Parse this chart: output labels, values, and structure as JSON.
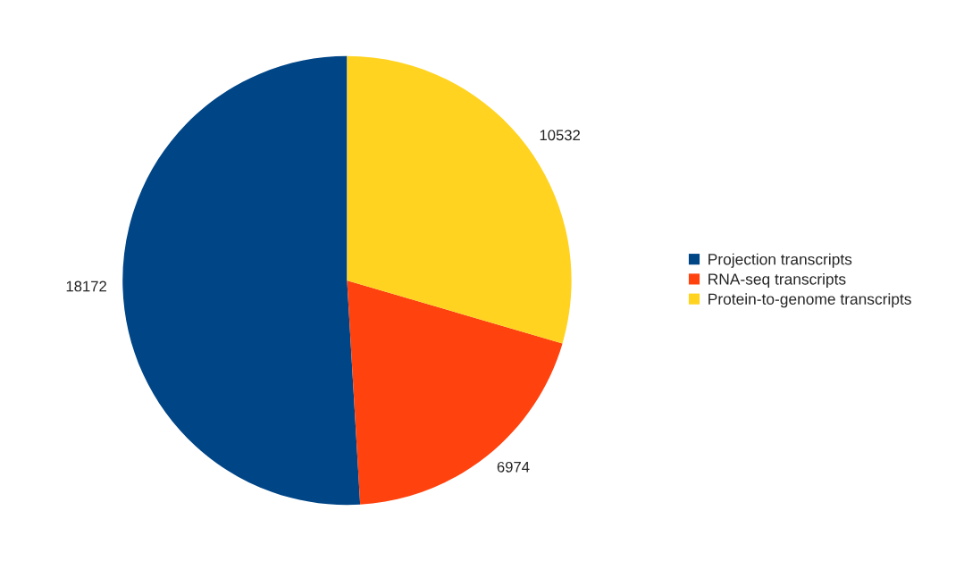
{
  "chart_data": {
    "type": "pie",
    "categories": [
      "Projection transcripts",
      "RNA-seq transcripts",
      "Protein-to-genome transcripts"
    ],
    "values": [
      18172,
      6974,
      10532
    ],
    "colors": [
      "#004586",
      "#ff420e",
      "#ffd320"
    ],
    "data_labels": true,
    "legend": "right"
  }
}
